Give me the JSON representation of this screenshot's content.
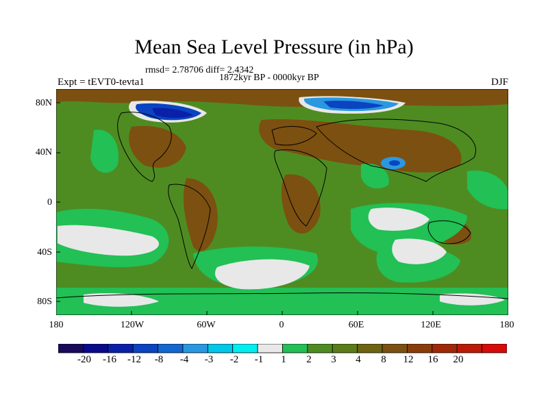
{
  "title": "Mean Sea Level Pressure (in hPa)",
  "subtitle_top": "rmsd= 2.78706 diff= 2.4342",
  "subtitle_bottom": "1872kyr BP - 0000kyr BP",
  "left_label": "Expt = tEVT0-tevta1",
  "right_label": "DJF",
  "y_ticks": [
    "80N",
    "40N",
    "0",
    "40S",
    "80S"
  ],
  "x_ticks": [
    "180",
    "120W",
    "60W",
    "0",
    "60E",
    "120E",
    "180"
  ],
  "colorbar": {
    "colors": [
      "#1a0a5c",
      "#0a0a8c",
      "#0a20a8",
      "#0a44c0",
      "#1466d0",
      "#2a98e0",
      "#00c8e8",
      "#00eef0",
      "#e8e8e8",
      "#22c055",
      "#4e8c22",
      "#5c7c1a",
      "#6e6410",
      "#7c5010",
      "#8a3c0a",
      "#a02808",
      "#bc1a06",
      "#d80a0a"
    ],
    "labels": [
      "-20",
      "-16",
      "-12",
      "-8",
      "-4",
      "-3",
      "-2",
      "-1",
      "1",
      "2",
      "3",
      "4",
      "8",
      "12",
      "16",
      "20"
    ]
  },
  "colors": {
    "base": "#4e8c22",
    "high": "#7c5010",
    "mid_green": "#22c055",
    "white": "#e8e8e8",
    "deep_blue": "#0a44c0",
    "cyan": "#2a98e0"
  }
}
